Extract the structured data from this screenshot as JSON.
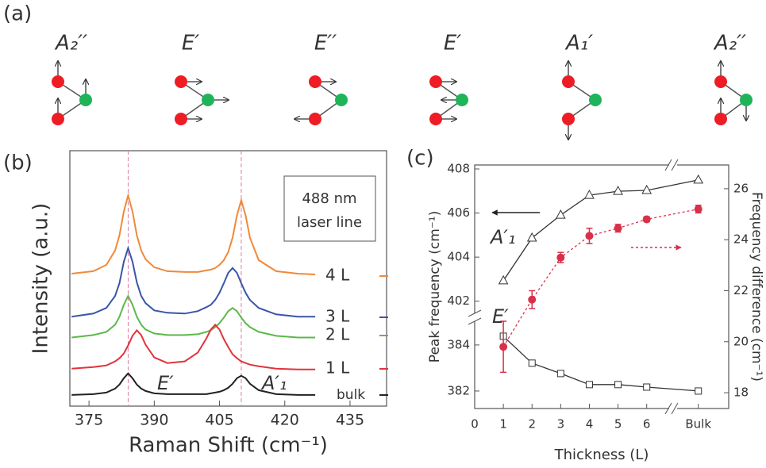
{
  "panel_labels": [
    "(a)",
    "(b)",
    "(c)"
  ],
  "diagram": {
    "modes": [
      "A₂′′",
      "E′",
      "E′′",
      "E′",
      "A₁′",
      "A₂′′"
    ]
  },
  "chart_data": [
    {
      "type": "line",
      "xlabel": "Raman Shift (cm⁻¹)",
      "ylabel": "Intensity (a.u.)",
      "inset_text": [
        "488 nm",
        "laser line"
      ],
      "peak_labels": [
        "E′",
        "A′₁"
      ],
      "reference_lines": [
        384,
        410
      ],
      "reference_color": "#e27aa6",
      "xlim": [
        370.6,
        443.4
      ],
      "xticks": [
        375,
        390,
        405,
        420,
        435
      ],
      "ylim": [
        0,
        320
      ],
      "x": [
        371,
        376,
        379,
        381,
        382,
        383,
        384,
        385,
        386,
        387,
        388,
        390,
        393,
        397,
        400,
        402,
        403,
        404,
        405,
        406,
        407,
        408,
        409,
        410,
        411,
        412,
        414,
        418,
        423,
        427
      ],
      "series": [
        {
          "name": "4 L",
          "color": "#f0893a",
          "values": [
            166,
            169,
            177,
            195,
            214,
            244,
            264,
            244,
            214,
            195,
            184,
            174,
            169,
            168,
            168,
            170,
            171,
            173,
            177,
            183,
            193,
            211,
            239,
            258,
            239,
            211,
            183,
            169,
            166,
            165
          ]
        },
        {
          "name": "3 L",
          "color": "#3a55a8",
          "values": [
            112,
            116,
            123,
            138,
            154,
            181,
            198,
            181,
            155,
            138,
            129,
            120,
            117,
            116,
            119,
            124,
            127,
            133,
            142,
            154,
            167,
            173,
            167,
            154,
            142,
            133,
            123,
            115,
            112,
            112
          ]
        },
        {
          "name": "2 L",
          "color": "#5cb84a",
          "values": [
            86,
            89,
            93,
            102,
            112,
            127,
            138,
            127,
            112,
            102,
            96,
            91,
            89,
            89,
            90,
            93,
            95,
            99,
            104,
            111,
            119,
            123,
            119,
            111,
            104,
            99,
            93,
            88,
            86,
            86
          ]
        },
        {
          "name": "1 L",
          "color": "#e2333c",
          "values": [
            47,
            49,
            51,
            56,
            60,
            66,
            76,
            88,
            95,
            89,
            77,
            61,
            54,
            56,
            67,
            85,
            96,
            102,
            96,
            84,
            74,
            65,
            60,
            56,
            54,
            52,
            50,
            47,
            46,
            46
          ]
        },
        {
          "name": "bulk",
          "color": "#222222",
          "values": [
            14,
            15,
            17,
            22,
            27,
            35,
            41,
            35,
            27,
            22,
            19,
            16,
            15,
            15,
            15,
            15,
            16,
            17,
            18,
            20,
            23,
            28,
            35,
            38,
            35,
            28,
            20,
            15,
            14,
            14
          ]
        }
      ]
    },
    {
      "type": "line",
      "xlabel": "Thickness (L)",
      "ylabel": "Peak frequency (cm⁻¹)",
      "y2label": "Frequency difference (cm⁻¹)",
      "x": [
        1,
        2,
        3,
        4,
        5,
        6,
        7.8
      ],
      "xlim": [
        0,
        8.86
      ],
      "xticks": [
        0,
        1,
        2,
        3,
        4,
        5,
        6,
        {
          "value": 7.8,
          "label": "Bulk"
        }
      ],
      "ylim": [
        381.24,
        408.18
      ],
      "ybreak": [
        385.03,
        401.45
      ],
      "yticks": [
        382,
        384,
        402,
        404,
        406,
        408
      ],
      "y2lim": [
        17.38,
        26.93
      ],
      "y2ticks": [
        18,
        20,
        22,
        24,
        26
      ],
      "series": [
        {
          "name": "A′₁",
          "color": "#333333",
          "marker": "triangle",
          "values": [
            402.93,
            404.87,
            405.91,
            406.81,
            406.99,
            407.03,
            407.5
          ]
        },
        {
          "name": "E′",
          "color": "#333333",
          "marker": "square",
          "values": [
            384.38,
            383.21,
            382.76,
            382.28,
            382.28,
            382.17,
            382.0
          ]
        },
        {
          "axis": "y2",
          "color": "#d9304a",
          "marker": "circle",
          "linestyle": "dotted",
          "values": [
            19.8,
            21.65,
            23.3,
            24.15,
            24.45,
            24.8,
            25.2
          ],
          "errors": [
            1.0,
            0.35,
            0.2,
            0.3,
            0.15,
            0.1,
            0.15
          ]
        }
      ]
    }
  ]
}
